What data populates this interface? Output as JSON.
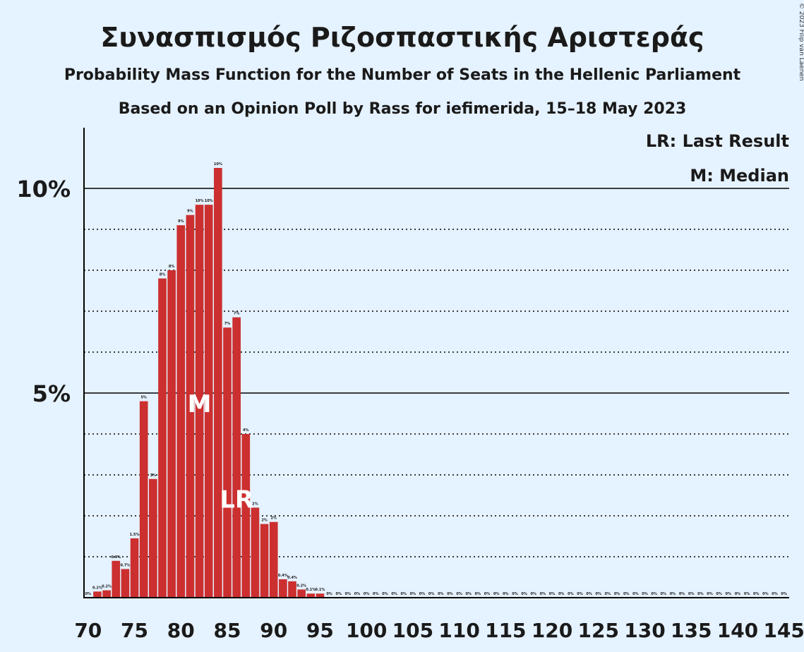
{
  "chart_data": {
    "type": "bar",
    "title": "Συνασπισμός Ριζοσπαστικής Αριστεράς",
    "subtitle": "Probability Mass Function for the Number of Seats in the Hellenic Parliament",
    "subtitle2": "Based on an Opinion Poll by Rass for iefimerida, 15–18 May 2023",
    "copyright": "© 2023 Filip van Laenen",
    "legend": {
      "last_result": "LR: Last Result",
      "median": "M: Median",
      "placement": "top-right"
    },
    "y_ticks": [
      {
        "value": 5,
        "label": "5%"
      },
      {
        "value": 10,
        "label": "10%"
      }
    ],
    "x_ticks": [
      70,
      75,
      80,
      85,
      90,
      95,
      100,
      105,
      110,
      115,
      120,
      125,
      130,
      135,
      140,
      145
    ],
    "xlim": [
      70,
      145
    ],
    "ylim": [
      0,
      11.5
    ],
    "bar_color": "#cc2f2f",
    "median_seat": 82,
    "median_label": "M",
    "last_result_seat": 86,
    "last_result_label": "LR",
    "x": [
      70,
      71,
      72,
      73,
      74,
      75,
      76,
      77,
      78,
      79,
      80,
      81,
      82,
      83,
      84,
      85,
      86,
      87,
      88,
      89,
      90,
      91,
      92,
      93,
      94,
      95,
      96,
      97,
      98,
      99,
      100,
      101,
      102,
      103,
      104,
      105,
      106,
      107,
      108,
      109,
      110,
      111,
      112,
      113,
      114,
      115,
      116,
      117,
      118,
      119,
      120,
      121,
      122,
      123,
      124,
      125,
      126,
      127,
      128,
      129,
      130,
      131,
      132,
      133,
      134,
      135,
      136,
      137,
      138,
      139,
      140,
      141,
      142,
      143,
      144,
      145
    ],
    "values": [
      0,
      0.15,
      0.18,
      0.9,
      0.7,
      1.45,
      4.8,
      2.9,
      7.8,
      8.0,
      9.1,
      9.35,
      9.6,
      9.6,
      10.5,
      6.6,
      6.85,
      4.0,
      2.2,
      1.8,
      1.85,
      0.45,
      0.4,
      0.2,
      0.1,
      0.1,
      0,
      0,
      0,
      0,
      0,
      0,
      0,
      0,
      0,
      0,
      0,
      0,
      0,
      0,
      0,
      0,
      0,
      0,
      0,
      0,
      0,
      0,
      0,
      0,
      0,
      0,
      0,
      0,
      0,
      0,
      0,
      0,
      0,
      0,
      0,
      0,
      0,
      0,
      0,
      0,
      0,
      0,
      0,
      0,
      0,
      0,
      0,
      0,
      0,
      0
    ],
    "labels": [
      "0%",
      "0.2%",
      "0.2%",
      "0.9%",
      "0.7%",
      "1.5%",
      "5%",
      "3%",
      "8%",
      "8%",
      "9%",
      "9%",
      "10%",
      "10%",
      "10%",
      "7%",
      "7%",
      "4%",
      "2%",
      "2%",
      "2%",
      "0.4%",
      "0.4%",
      "0.2%",
      "0.1%",
      "0.1%",
      "0%",
      "0%",
      "0%",
      "0%",
      "0%",
      "0%",
      "0%",
      "0%",
      "0%",
      "0%",
      "0%",
      "0%",
      "0%",
      "0%",
      "0%",
      "0%",
      "0%",
      "0%",
      "0%",
      "0%",
      "0%",
      "0%",
      "0%",
      "0%",
      "0%",
      "0%",
      "0%",
      "0%",
      "0%",
      "0%",
      "0%",
      "0%",
      "0%",
      "0%",
      "0%",
      "0%",
      "0%",
      "0%",
      "0%",
      "0%",
      "0%",
      "0%",
      "0%",
      "0%",
      "0%",
      "0%",
      "0%",
      "0%",
      "0%",
      "0%"
    ]
  }
}
